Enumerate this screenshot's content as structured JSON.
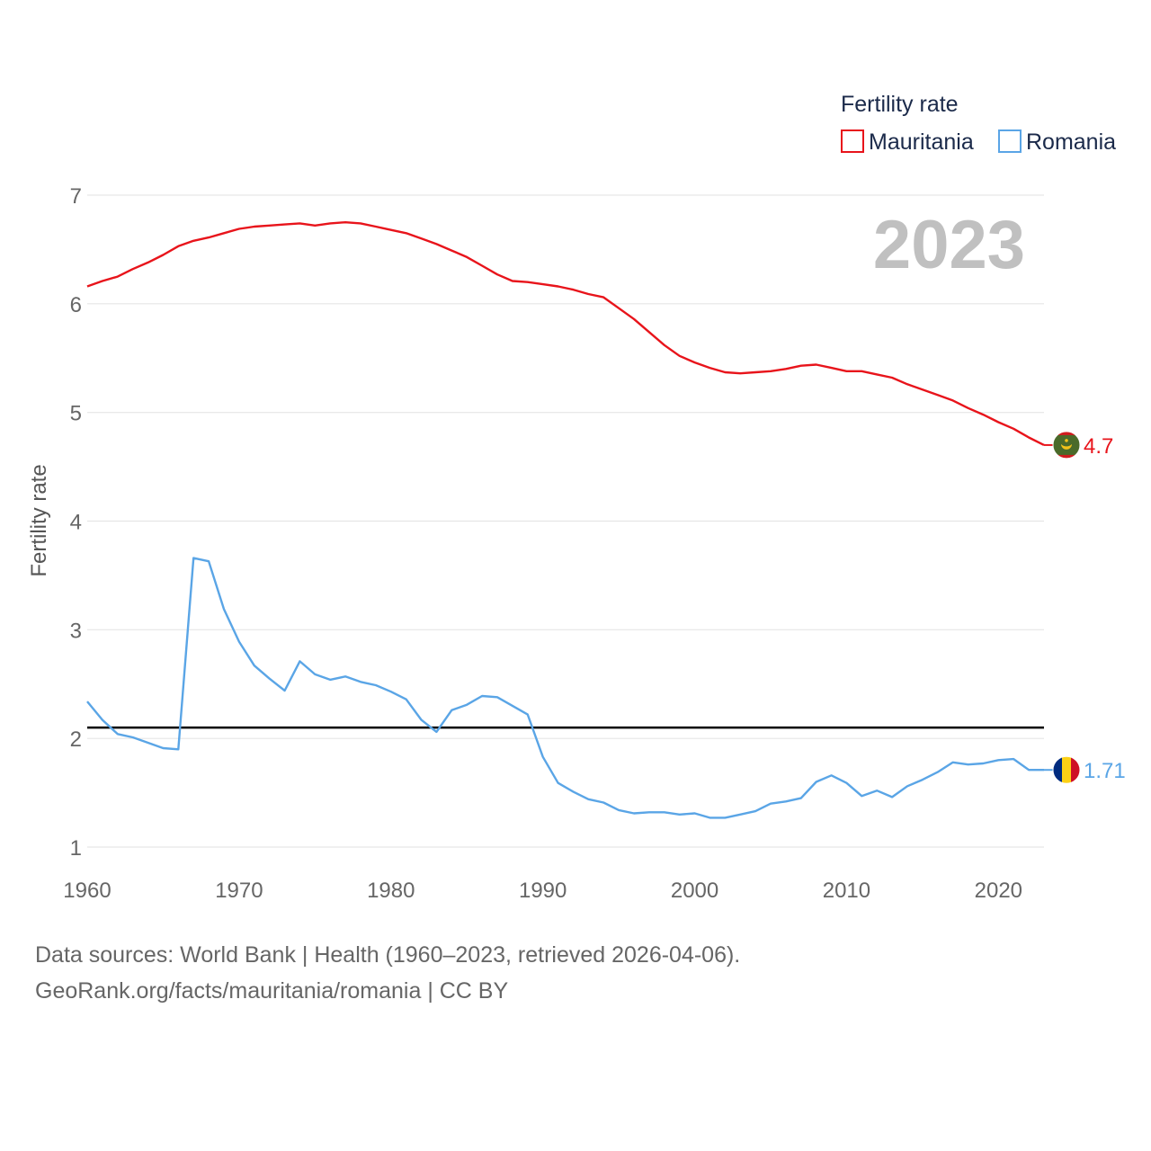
{
  "chart_data": {
    "type": "line",
    "year_label": "2023",
    "ylabel": "Fertility rate",
    "xlabel": "",
    "xlim": [
      1960,
      2023
    ],
    "ylim": [
      1,
      7
    ],
    "x_ticks": [
      1960,
      1970,
      1980,
      1990,
      2000,
      2010,
      2020
    ],
    "y_ticks": [
      1,
      2,
      3,
      4,
      5,
      6,
      7
    ],
    "legend": {
      "title": "Fertility rate",
      "position": "top-right",
      "items": [
        {
          "name": "Mauritania",
          "color": "#e8141b"
        },
        {
          "name": "Romania",
          "color": "#5aa5e6"
        }
      ]
    },
    "reference_line": {
      "value": 2.1,
      "color": "#000000"
    },
    "x": [
      1960,
      1961,
      1962,
      1963,
      1964,
      1965,
      1966,
      1967,
      1968,
      1969,
      1970,
      1971,
      1972,
      1973,
      1974,
      1975,
      1976,
      1977,
      1978,
      1979,
      1980,
      1981,
      1982,
      1983,
      1984,
      1985,
      1986,
      1987,
      1988,
      1989,
      1990,
      1991,
      1992,
      1993,
      1994,
      1995,
      1996,
      1997,
      1998,
      1999,
      2000,
      2001,
      2002,
      2003,
      2004,
      2005,
      2006,
      2007,
      2008,
      2009,
      2010,
      2011,
      2012,
      2013,
      2014,
      2015,
      2016,
      2017,
      2018,
      2019,
      2020,
      2021,
      2022,
      2023
    ],
    "series": [
      {
        "name": "Mauritania",
        "color": "#e8141b",
        "end_label": "4.7",
        "flag_icon": "mauritania-flag-icon",
        "values": [
          6.16,
          6.21,
          6.25,
          6.32,
          6.38,
          6.45,
          6.53,
          6.58,
          6.61,
          6.65,
          6.69,
          6.71,
          6.72,
          6.73,
          6.74,
          6.72,
          6.74,
          6.75,
          6.74,
          6.71,
          6.68,
          6.65,
          6.6,
          6.55,
          6.49,
          6.43,
          6.35,
          6.27,
          6.21,
          6.2,
          6.18,
          6.16,
          6.13,
          6.09,
          6.06,
          5.96,
          5.86,
          5.74,
          5.62,
          5.52,
          5.46,
          5.41,
          5.37,
          5.36,
          5.37,
          5.38,
          5.4,
          5.43,
          5.44,
          5.41,
          5.38,
          5.38,
          5.35,
          5.32,
          5.26,
          5.21,
          5.16,
          5.11,
          5.04,
          4.98,
          4.91,
          4.85,
          4.77,
          4.7
        ]
      },
      {
        "name": "Romania",
        "color": "#5aa5e6",
        "end_label": "1.71",
        "flag_icon": "romania-flag-icon",
        "values": [
          2.34,
          2.17,
          2.04,
          2.01,
          1.96,
          1.91,
          1.9,
          3.66,
          3.63,
          3.19,
          2.89,
          2.67,
          2.55,
          2.44,
          2.71,
          2.59,
          2.54,
          2.57,
          2.52,
          2.49,
          2.43,
          2.36,
          2.17,
          2.06,
          2.26,
          2.31,
          2.39,
          2.38,
          2.3,
          2.22,
          1.83,
          1.59,
          1.51,
          1.44,
          1.41,
          1.34,
          1.31,
          1.32,
          1.32,
          1.3,
          1.31,
          1.27,
          1.27,
          1.3,
          1.33,
          1.4,
          1.42,
          1.45,
          1.6,
          1.66,
          1.59,
          1.47,
          1.52,
          1.46,
          1.56,
          1.62,
          1.69,
          1.78,
          1.76,
          1.77,
          1.8,
          1.81,
          1.71,
          1.71
        ]
      }
    ]
  },
  "footer": {
    "sources": "Data sources: World Bank | Health (1960–2023, retrieved 2026-04-06).",
    "credit": "GeoRank.org/facts/mauritania/romania | CC BY"
  }
}
